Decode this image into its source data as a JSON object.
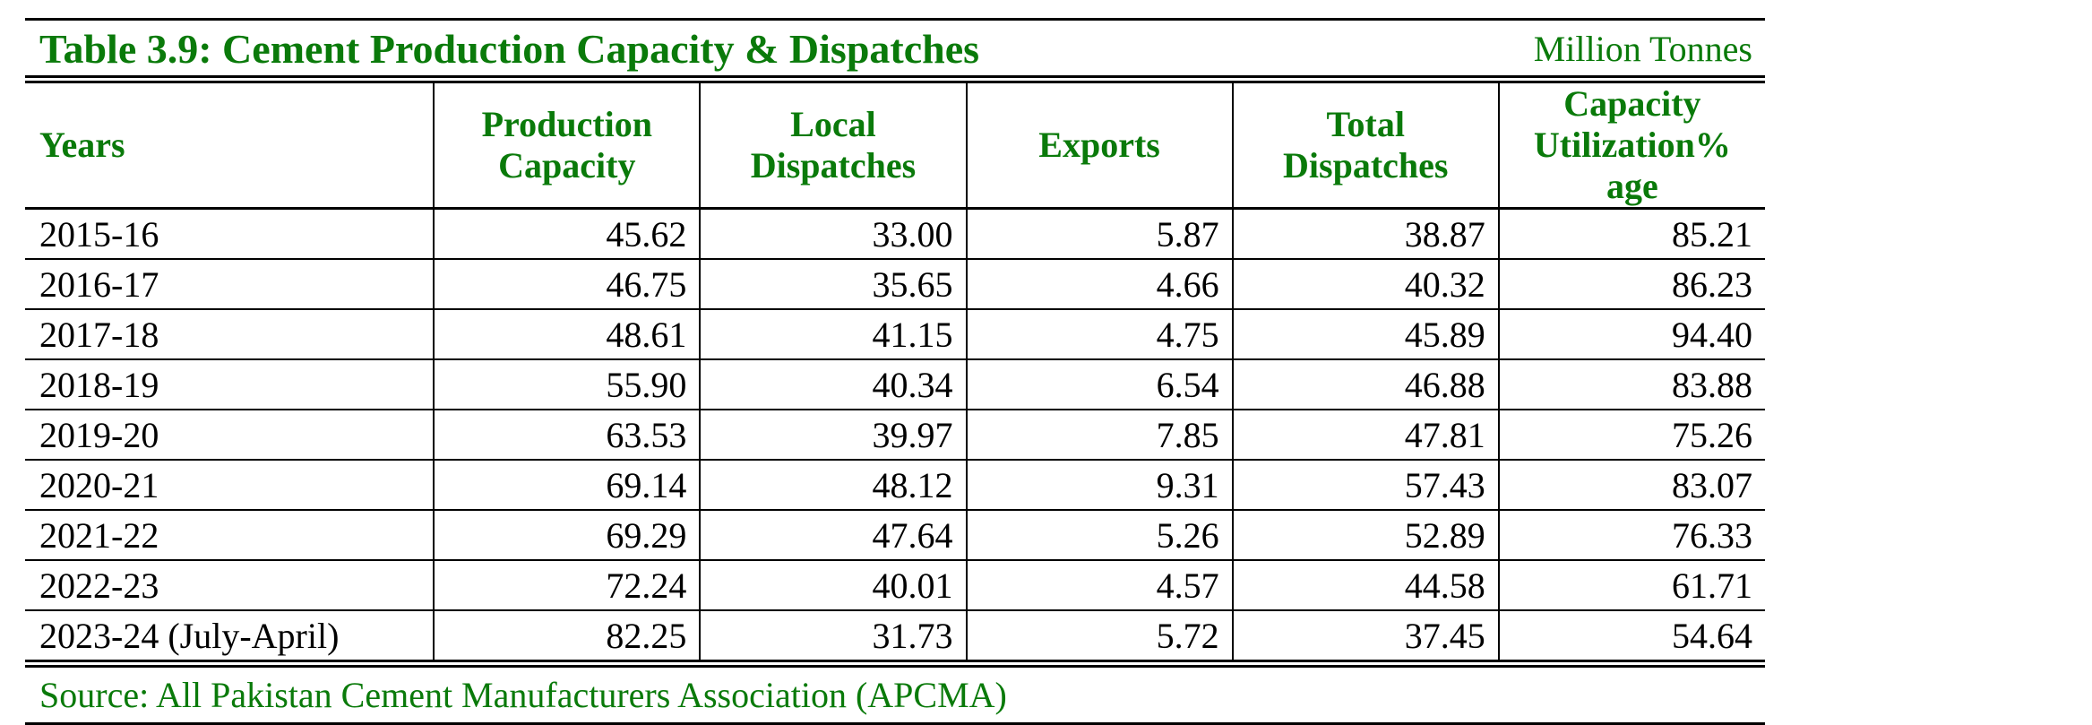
{
  "table": {
    "title": "Table 3.9: Cement Production Capacity & Dispatches",
    "unit": "Million Tonnes",
    "columns": [
      "Years",
      "Production Capacity",
      "Local Dispatches",
      "Exports",
      "Total Dispatches",
      "Capacity Utilization% age"
    ],
    "rows": [
      {
        "year": "2015-16",
        "production_capacity": "45.62",
        "local_dispatches": "33.00",
        "exports": "5.87",
        "total_dispatches": "38.87",
        "capacity_utilization": "85.21"
      },
      {
        "year": "2016-17",
        "production_capacity": "46.75",
        "local_dispatches": "35.65",
        "exports": "4.66",
        "total_dispatches": "40.32",
        "capacity_utilization": "86.23"
      },
      {
        "year": "2017-18",
        "production_capacity": "48.61",
        "local_dispatches": "41.15",
        "exports": "4.75",
        "total_dispatches": "45.89",
        "capacity_utilization": "94.40"
      },
      {
        "year": "2018-19",
        "production_capacity": "55.90",
        "local_dispatches": "40.34",
        "exports": "6.54",
        "total_dispatches": "46.88",
        "capacity_utilization": "83.88"
      },
      {
        "year": "2019-20",
        "production_capacity": "63.53",
        "local_dispatches": "39.97",
        "exports": "7.85",
        "total_dispatches": "47.81",
        "capacity_utilization": "75.26"
      },
      {
        "year": "2020-21",
        "production_capacity": "69.14",
        "local_dispatches": "48.12",
        "exports": "9.31",
        "total_dispatches": "57.43",
        "capacity_utilization": "83.07"
      },
      {
        "year": "2021-22",
        "production_capacity": "69.29",
        "local_dispatches": "47.64",
        "exports": "5.26",
        "total_dispatches": "52.89",
        "capacity_utilization": "76.33"
      },
      {
        "year": "2022-23",
        "production_capacity": "72.24",
        "local_dispatches": "40.01",
        "exports": "4.57",
        "total_dispatches": "44.58",
        "capacity_utilization": "61.71"
      },
      {
        "year": "2023-24 (July-April)",
        "production_capacity": "82.25",
        "local_dispatches": "31.73",
        "exports": "5.72",
        "total_dispatches": "37.45",
        "capacity_utilization": "54.64"
      }
    ],
    "source": "Source: All Pakistan Cement Manufacturers Association (APCMA)"
  },
  "colors": {
    "accent_green": "#0a7a0a",
    "rule": "#000000"
  }
}
